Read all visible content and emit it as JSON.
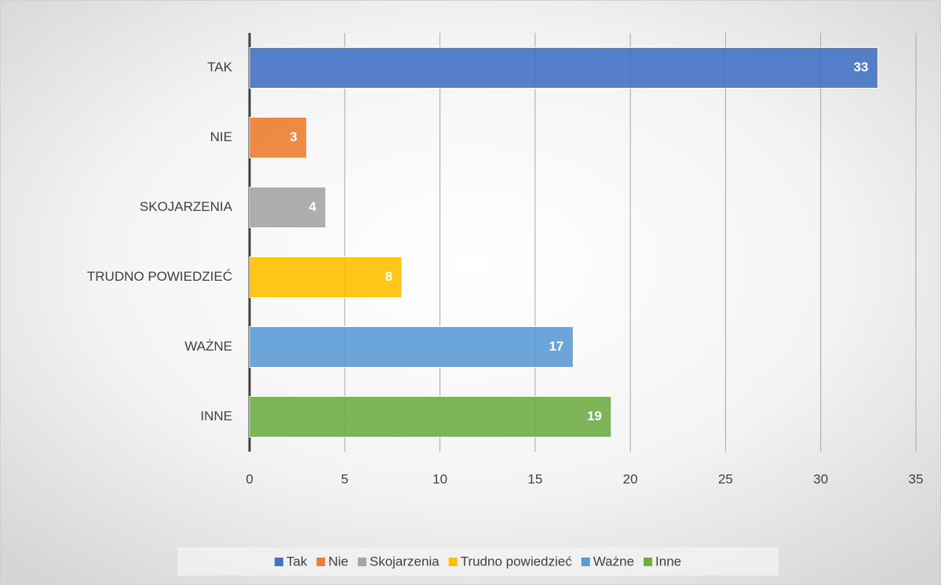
{
  "chart_data": {
    "type": "barh",
    "categories": [
      "TAK",
      "NIE",
      "SKOJARZENIA",
      "TRUDNO POWIEDZIEĆ",
      "WAŻNE",
      "INNE"
    ],
    "series": [
      {
        "name": "Tak",
        "color": "#4472c4",
        "values": [
          33,
          null,
          null,
          null,
          null,
          null
        ]
      },
      {
        "name": "Nie",
        "color": "#ed7d31",
        "values": [
          null,
          3,
          null,
          null,
          null,
          null
        ]
      },
      {
        "name": "Skojarzenia",
        "color": "#a5a5a5",
        "values": [
          null,
          null,
          4,
          null,
          null,
          null
        ]
      },
      {
        "name": "Trudno powiedzieć",
        "color": "#ffc000",
        "values": [
          null,
          null,
          null,
          8,
          null,
          null
        ]
      },
      {
        "name": "Ważne",
        "color": "#5b9bd5",
        "values": [
          null,
          null,
          null,
          null,
          17,
          null
        ]
      },
      {
        "name": "Inne",
        "color": "#70ad47",
        "values": [
          null,
          null,
          null,
          null,
          null,
          19
        ]
      }
    ],
    "xlim": [
      0,
      35
    ],
    "xticks": [
      0,
      5,
      10,
      15,
      20,
      25,
      30,
      35
    ],
    "grid": true,
    "legend": "bottom"
  }
}
